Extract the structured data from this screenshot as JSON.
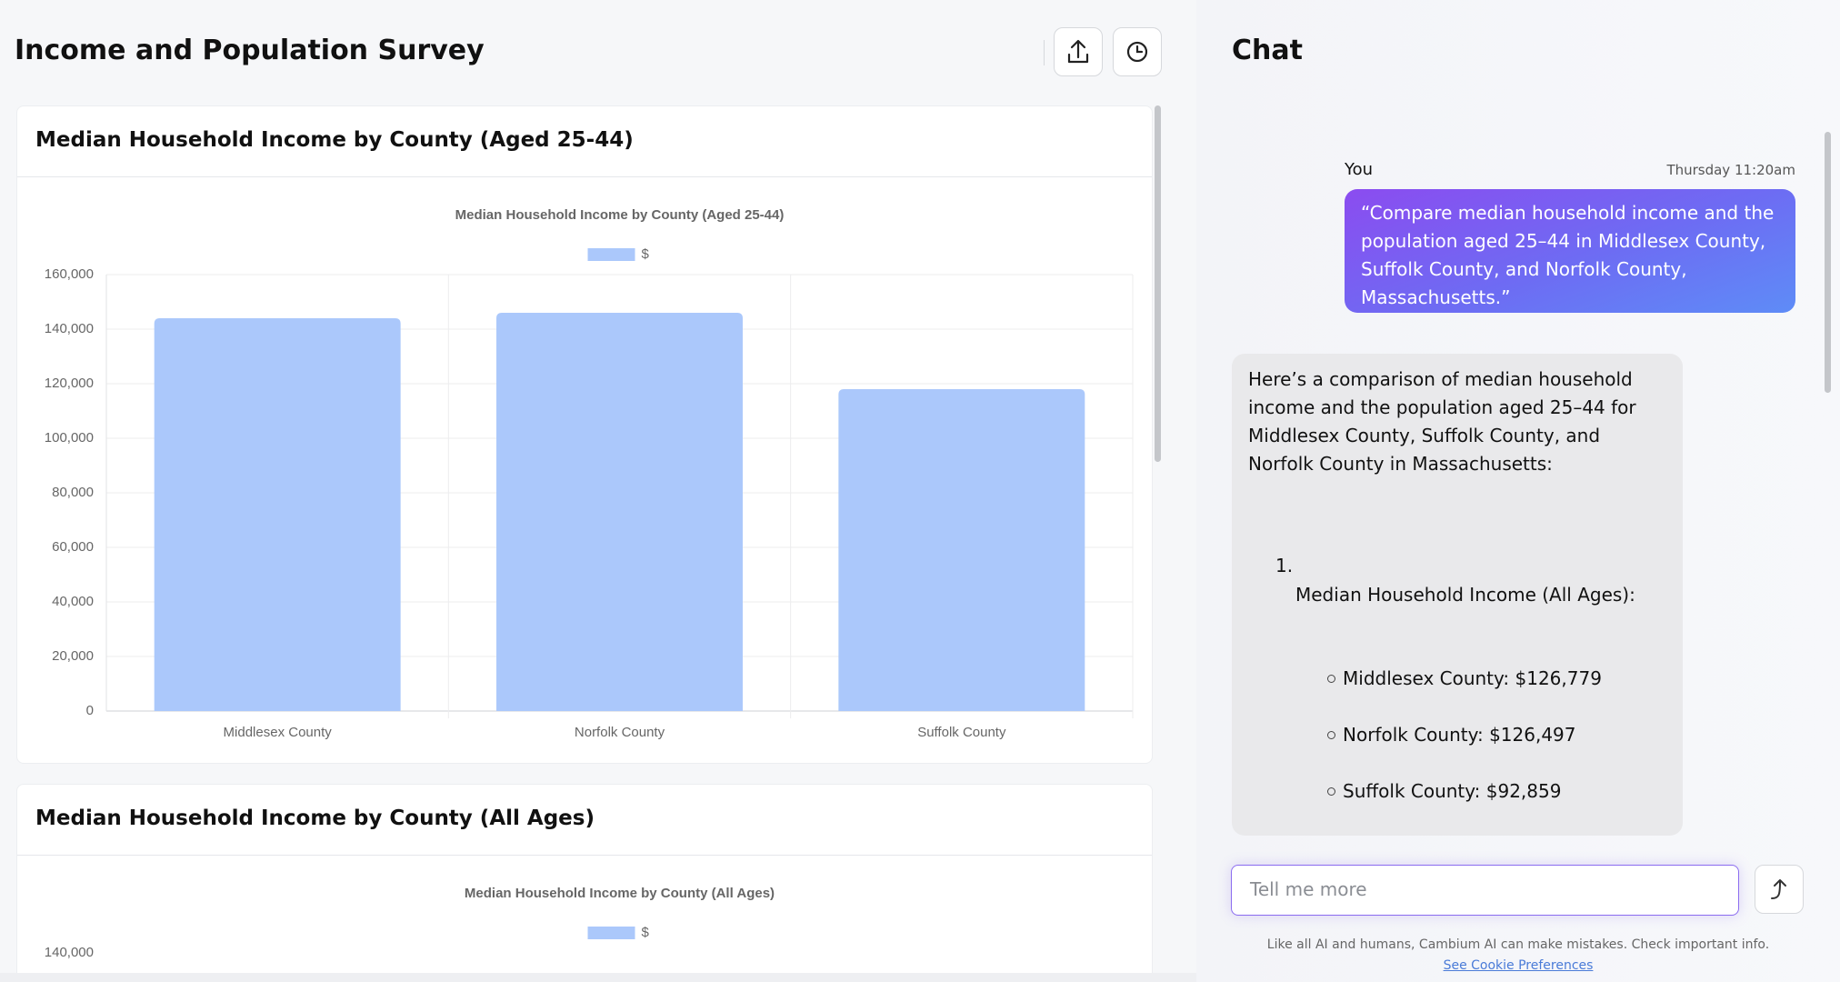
{
  "header": {
    "title": "Income and Population Survey"
  },
  "charts": [
    {
      "card_title": "Median Household Income by County (Aged 25-44)",
      "chart_data": {
        "type": "bar",
        "title": "Median Household Income by County (Aged 25-44)",
        "categories": [
          "Middlesex County",
          "Norfolk County",
          "Suffolk County"
        ],
        "series": [
          {
            "name": "$",
            "color": "#abc8fb",
            "values": [
              144000,
              146000,
              118000
            ]
          }
        ],
        "ylim": [
          0,
          160000
        ],
        "yticks": [
          0,
          {
            "value": 20000,
            "label": "20,000"
          },
          {
            "value": 40000,
            "label": "40,000"
          },
          {
            "value": 60000,
            "label": "60,000"
          },
          {
            "value": 80000,
            "label": "80,000"
          },
          {
            "value": 100000,
            "label": "100,000"
          },
          {
            "value": 120000,
            "label": "120,000"
          },
          {
            "value": 140000,
            "label": "140,000"
          },
          {
            "value": 160000,
            "label": "160,000"
          }
        ],
        "grid": true,
        "legend": "top"
      }
    },
    {
      "card_title": "Median Household Income by County (All Ages)",
      "chart_data": {
        "type": "bar",
        "title": "Median Household Income by County (All Ages)",
        "series": [
          {
            "name": "$",
            "color": "#abc8fb"
          }
        ],
        "yticks": [
          {
            "value": 140000,
            "label": "140,000"
          }
        ],
        "legend": "top"
      }
    }
  ],
  "chat": {
    "title": "Chat",
    "user_message": {
      "sender": "You",
      "time": "Thursday 11:20am",
      "text": "“Compare median household income and the population aged 25–44 in Middlesex County, Suffolk County, and Norfolk County, Massachusetts.”"
    },
    "reply": {
      "intro": "Here’s a comparison of median household income and the population aged 25–44 for Middlesex County, Suffolk County, and Norfolk County in Massachusetts:",
      "list": [
        {
          "number": "1.",
          "heading": "Median Household Income (All Ages):",
          "items": [
            "Middlesex County: $126,779",
            "Norfolk County: $126,497",
            "Suffolk County: $92,859"
          ]
        }
      ]
    },
    "input_placeholder": "Tell me more",
    "disclaimer": "Like all AI and humans, Cambium AI can make mistakes. Check important info.",
    "cookie_link": "See Cookie Preferences"
  }
}
